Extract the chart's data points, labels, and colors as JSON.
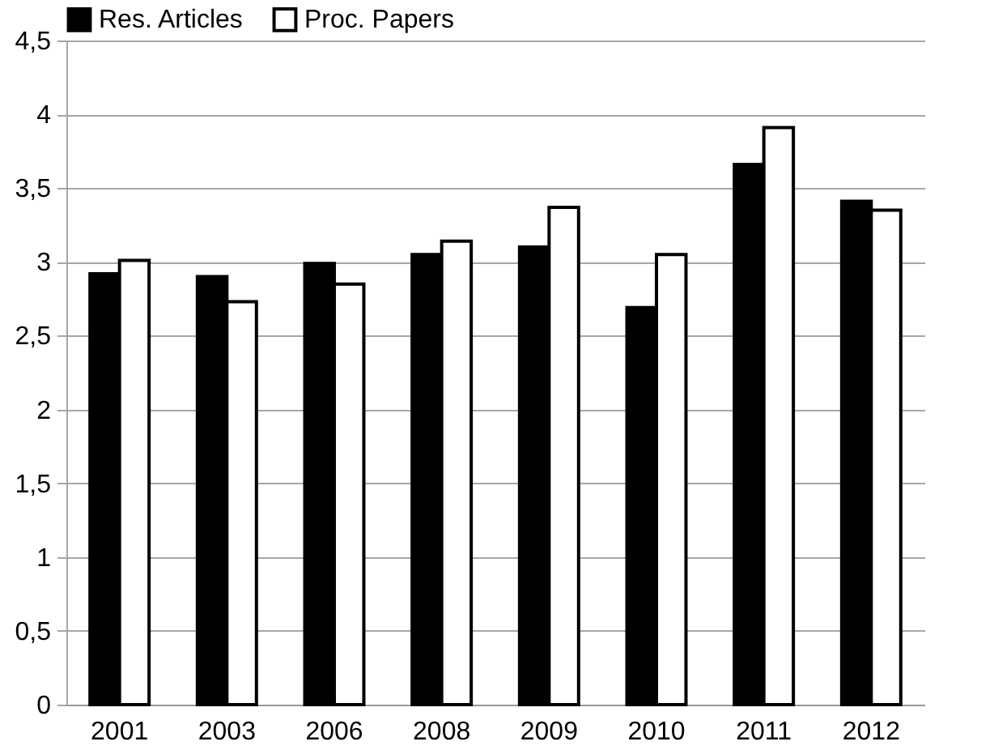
{
  "chart_data": {
    "type": "bar",
    "categories": [
      "2001",
      "2003",
      "2006",
      "2008",
      "2009",
      "2010",
      "2011",
      "2012"
    ],
    "series": [
      {
        "name": "Res. Articles",
        "color": "#000000",
        "values": [
          2.92,
          2.9,
          2.99,
          3.05,
          3.1,
          2.69,
          3.66,
          3.41
        ]
      },
      {
        "name": "Proc. Papers",
        "color": "#ffffff",
        "values": [
          3.01,
          2.73,
          2.85,
          3.14,
          3.37,
          3.05,
          3.91,
          3.35
        ]
      }
    ],
    "ylim": [
      0,
      4.5
    ],
    "yticks": [
      {
        "value": 0,
        "label": "0"
      },
      {
        "value": 0.5,
        "label": "0,5"
      },
      {
        "value": 1,
        "label": "1"
      },
      {
        "value": 1.5,
        "label": "1,5"
      },
      {
        "value": 2,
        "label": "2"
      },
      {
        "value": 2.5,
        "label": "2,5"
      },
      {
        "value": 3,
        "label": "3"
      },
      {
        "value": 3.5,
        "label": "3,5"
      },
      {
        "value": 4,
        "label": "4"
      },
      {
        "value": 4.5,
        "label": "4,5"
      }
    ],
    "grid": "y",
    "legend": "top"
  }
}
